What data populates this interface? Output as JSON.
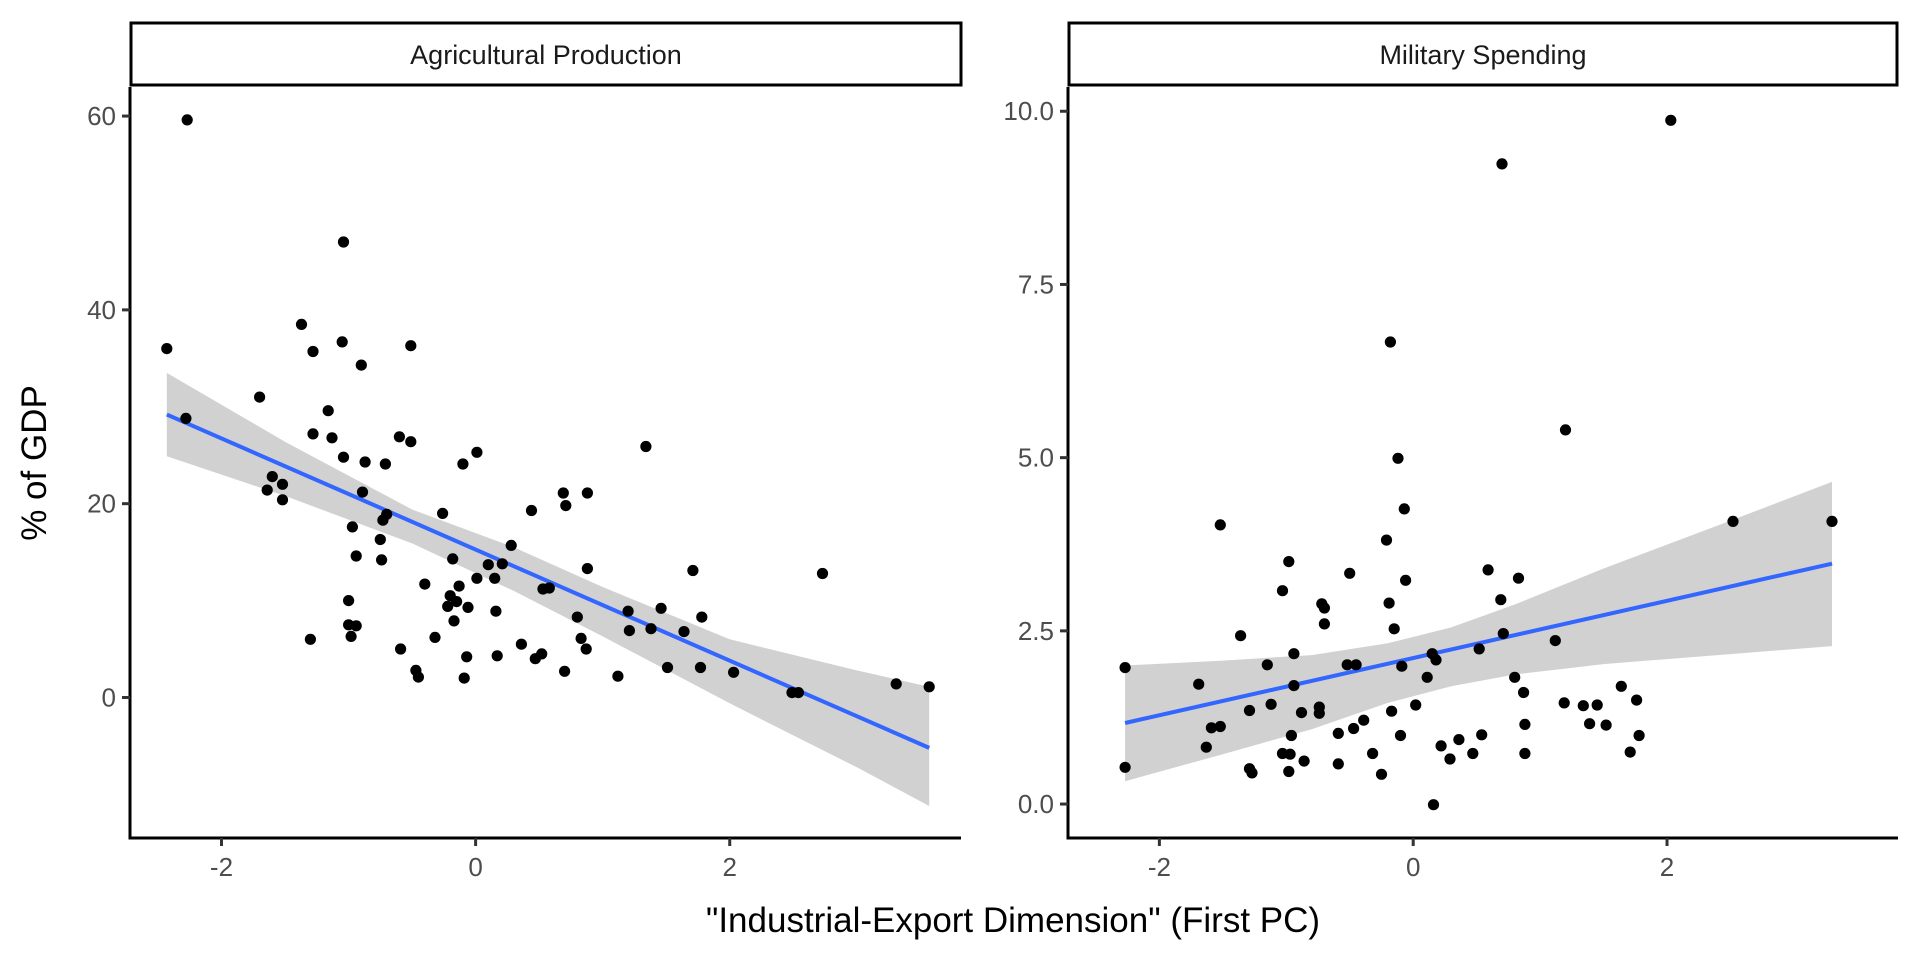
{
  "chart_data": [
    {
      "type": "scatter",
      "panel_title": "Agricultural Production",
      "xlabel": "\"Industrial-Export Dimension\" (First PC)",
      "ylabel": "% of GDP",
      "xlim": [
        -2.72,
        3.82
      ],
      "ylim": [
        -14.5,
        63
      ],
      "xticks": [
        -2,
        0,
        2
      ],
      "xtick_labels": [
        "-2",
        "0",
        "2"
      ],
      "yticks": [
        0,
        20,
        40,
        60
      ],
      "ytick_labels": [
        "0",
        "20",
        "40",
        "60"
      ],
      "grid": false,
      "points": [
        [
          -2.27,
          59.6
        ],
        [
          -1.04,
          47.0
        ],
        [
          -1.37,
          38.5
        ],
        [
          -2.43,
          36.0
        ],
        [
          -1.28,
          35.7
        ],
        [
          -1.05,
          36.7
        ],
        [
          -0.51,
          36.3
        ],
        [
          -0.9,
          34.3
        ],
        [
          -1.7,
          31.0
        ],
        [
          -1.16,
          29.6
        ],
        [
          -2.28,
          28.8
        ],
        [
          -1.28,
          27.2
        ],
        [
          -1.13,
          26.8
        ],
        [
          -0.6,
          26.9
        ],
        [
          -0.51,
          26.4
        ],
        [
          0.01,
          25.3
        ],
        [
          -0.1,
          24.1
        ],
        [
          1.34,
          25.9
        ],
        [
          -1.04,
          24.8
        ],
        [
          -0.87,
          24.3
        ],
        [
          -0.71,
          24.1
        ],
        [
          -1.6,
          22.8
        ],
        [
          -1.52,
          22.0
        ],
        [
          -1.64,
          21.4
        ],
        [
          -1.52,
          20.4
        ],
        [
          -0.89,
          21.2
        ],
        [
          0.69,
          21.1
        ],
        [
          0.88,
          21.1
        ],
        [
          0.71,
          19.8
        ],
        [
          0.44,
          19.3
        ],
        [
          -0.26,
          19.0
        ],
        [
          -0.7,
          18.9
        ],
        [
          -0.73,
          18.3
        ],
        [
          -0.97,
          17.6
        ],
        [
          -0.75,
          16.3
        ],
        [
          0.28,
          15.7
        ],
        [
          -0.94,
          14.6
        ],
        [
          -0.18,
          14.3
        ],
        [
          -0.74,
          14.2
        ],
        [
          0.1,
          13.7
        ],
        [
          0.21,
          13.8
        ],
        [
          1.71,
          13.1
        ],
        [
          0.88,
          13.3
        ],
        [
          2.73,
          12.8
        ],
        [
          0.01,
          12.3
        ],
        [
          0.15,
          12.3
        ],
        [
          -0.4,
          11.7
        ],
        [
          -0.13,
          11.5
        ],
        [
          0.53,
          11.2
        ],
        [
          0.58,
          11.3
        ],
        [
          -0.2,
          10.5
        ],
        [
          -1.0,
          10.0
        ],
        [
          -0.15,
          9.9
        ],
        [
          -0.22,
          9.4
        ],
        [
          -0.06,
          9.3
        ],
        [
          0.16,
          8.9
        ],
        [
          1.46,
          9.2
        ],
        [
          1.2,
          8.9
        ],
        [
          -1.0,
          7.5
        ],
        [
          -0.94,
          7.4
        ],
        [
          -0.17,
          7.9
        ],
        [
          0.8,
          8.3
        ],
        [
          1.78,
          8.3
        ],
        [
          1.21,
          6.9
        ],
        [
          1.38,
          7.1
        ],
        [
          1.64,
          6.8
        ],
        [
          -0.98,
          6.3
        ],
        [
          -1.3,
          6.0
        ],
        [
          -0.32,
          6.2
        ],
        [
          0.83,
          6.1
        ],
        [
          0.36,
          5.5
        ],
        [
          0.87,
          5.0
        ],
        [
          -0.59,
          5.0
        ],
        [
          0.52,
          4.5
        ],
        [
          0.47,
          4.0
        ],
        [
          -0.07,
          4.2
        ],
        [
          0.17,
          4.3
        ],
        [
          1.51,
          3.1
        ],
        [
          1.77,
          3.1
        ],
        [
          -0.47,
          2.8
        ],
        [
          -0.45,
          2.1
        ],
        [
          -0.09,
          2.0
        ],
        [
          0.7,
          2.7
        ],
        [
          1.12,
          2.2
        ],
        [
          2.03,
          2.6
        ],
        [
          2.49,
          0.5
        ],
        [
          2.54,
          0.5
        ],
        [
          3.31,
          1.4
        ],
        [
          3.57,
          1.1
        ]
      ],
      "fit_line": {
        "method": "lm",
        "x": [
          -2.43,
          3.57
        ],
        "y": [
          29.2,
          -5.2
        ]
      },
      "confidence_band": {
        "x": [
          -2.43,
          -1.5,
          -0.5,
          0.3,
          1.0,
          2.0,
          3.0,
          3.57
        ],
        "upper": [
          33.5,
          26.4,
          19.4,
          15.5,
          11.4,
          6.0,
          2.8,
          1.1
        ],
        "lower": [
          24.9,
          20.8,
          15.9,
          11.0,
          6.3,
          -0.6,
          -7.2,
          -11.2
        ]
      },
      "colors": {
        "points": "#000000",
        "line": "#3366ff",
        "band": "#cccccc"
      }
    },
    {
      "type": "scatter",
      "panel_title": "Military Spending",
      "xlabel": "\"Industrial-Export Dimension\" (First PC)",
      "ylabel": "% of GDP",
      "xlim": [
        -2.72,
        3.82
      ],
      "ylim": [
        -0.49,
        10.35
      ],
      "xticks": [
        -2,
        0,
        2
      ],
      "xtick_labels": [
        "-2",
        "0",
        "2"
      ],
      "yticks": [
        0,
        2.5,
        5,
        7.5,
        10
      ],
      "ytick_labels": [
        "0.0",
        "2.5",
        "5.0",
        "7.5",
        "10.0"
      ],
      "grid": false,
      "points": [
        [
          2.03,
          9.87
        ],
        [
          0.7,
          9.24
        ],
        [
          -0.18,
          6.67
        ],
        [
          1.2,
          5.4
        ],
        [
          -0.12,
          4.99
        ],
        [
          -0.07,
          4.26
        ],
        [
          -1.52,
          4.03
        ],
        [
          2.52,
          4.08
        ],
        [
          3.3,
          4.08
        ],
        [
          -0.21,
          3.81
        ],
        [
          -0.98,
          3.5
        ],
        [
          -0.5,
          3.33
        ],
        [
          0.59,
          3.38
        ],
        [
          0.83,
          3.26
        ],
        [
          -0.06,
          3.23
        ],
        [
          -1.03,
          3.08
        ],
        [
          0.69,
          2.95
        ],
        [
          -0.19,
          2.9
        ],
        [
          -0.72,
          2.89
        ],
        [
          -0.7,
          2.83
        ],
        [
          -0.7,
          2.6
        ],
        [
          -0.15,
          2.53
        ],
        [
          -1.36,
          2.43
        ],
        [
          0.71,
          2.46
        ],
        [
          1.12,
          2.36
        ],
        [
          0.52,
          2.24
        ],
        [
          -0.94,
          2.17
        ],
        [
          0.15,
          2.17
        ],
        [
          0.18,
          2.08
        ],
        [
          -2.27,
          1.97
        ],
        [
          -0.52,
          2.01
        ],
        [
          -0.45,
          2.01
        ],
        [
          -1.15,
          2.01
        ],
        [
          -0.09,
          1.99
        ],
        [
          -1.69,
          1.73
        ],
        [
          -0.94,
          1.71
        ],
        [
          0.11,
          1.83
        ],
        [
          0.8,
          1.83
        ],
        [
          0.87,
          1.61
        ],
        [
          1.64,
          1.7
        ],
        [
          1.76,
          1.5
        ],
        [
          -1.12,
          1.44
        ],
        [
          -0.74,
          1.4
        ],
        [
          -1.29,
          1.35
        ],
        [
          -0.88,
          1.32
        ],
        [
          -0.74,
          1.31
        ],
        [
          0.02,
          1.43
        ],
        [
          -0.17,
          1.34
        ],
        [
          1.19,
          1.46
        ],
        [
          1.34,
          1.42
        ],
        [
          1.45,
          1.43
        ],
        [
          -0.39,
          1.21
        ],
        [
          -0.47,
          1.09
        ],
        [
          1.39,
          1.16
        ],
        [
          1.52,
          1.14
        ],
        [
          0.88,
          1.15
        ],
        [
          -1.59,
          1.1
        ],
        [
          -1.52,
          1.12
        ],
        [
          -0.96,
          0.99
        ],
        [
          -0.59,
          1.02
        ],
        [
          -0.1,
          0.99
        ],
        [
          0.54,
          1.0
        ],
        [
          1.78,
          0.99
        ],
        [
          0.36,
          0.93
        ],
        [
          0.22,
          0.84
        ],
        [
          -1.63,
          0.82
        ],
        [
          -1.03,
          0.73
        ],
        [
          -0.97,
          0.72
        ],
        [
          -0.32,
          0.73
        ],
        [
          0.47,
          0.73
        ],
        [
          0.88,
          0.73
        ],
        [
          1.71,
          0.75
        ],
        [
          0.29,
          0.65
        ],
        [
          -0.86,
          0.62
        ],
        [
          -0.59,
          0.58
        ],
        [
          -2.27,
          0.53
        ],
        [
          -1.29,
          0.51
        ],
        [
          -1.27,
          0.45
        ],
        [
          -0.98,
          0.47
        ],
        [
          -0.25,
          0.43
        ],
        [
          0.16,
          -0.01
        ]
      ],
      "fit_line": {
        "method": "lm",
        "x": [
          -2.27,
          3.3
        ],
        "y": [
          1.17,
          3.47
        ]
      },
      "confidence_band": {
        "x": [
          -2.27,
          -1.5,
          -0.8,
          -0.2,
          0.3,
          0.8,
          1.5,
          2.4,
          3.3
        ],
        "upper": [
          2.0,
          2.07,
          2.15,
          2.32,
          2.55,
          2.88,
          3.4,
          4.02,
          4.65
        ],
        "lower": [
          0.33,
          0.72,
          1.08,
          1.46,
          1.7,
          1.87,
          2.02,
          2.15,
          2.28
        ]
      },
      "colors": {
        "points": "#000000",
        "line": "#3366ff",
        "band": "#cccccc"
      }
    }
  ],
  "shared": {
    "xlabel": "\"Industrial-Export Dimension\" (First PC)",
    "ylabel": "% of GDP"
  }
}
